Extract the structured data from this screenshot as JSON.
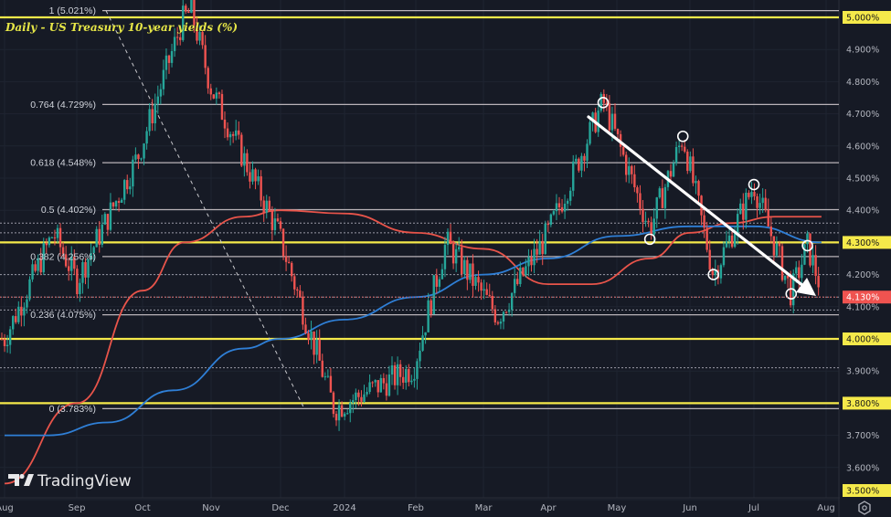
{
  "chart_title": "Daily - US Treasury 10-year yields (%)",
  "watermark": "TradingView",
  "current_price_label": "4.130%",
  "colors": {
    "background": "#161a25",
    "bullish": "#26a69a",
    "bearish": "#ef5350",
    "ma_red": "#e8544a",
    "ma_blue": "#2f7fd6",
    "horizontal_level": "#f5e94a",
    "fib_line": "#b9b3b8",
    "current_price_badge": "#ef5350"
  },
  "price_axis": {
    "ticks": [
      "5.000%",
      "4.900%",
      "4.800%",
      "4.700%",
      "4.600%",
      "4.500%",
      "4.400%",
      "4.300%",
      "4.200%",
      "4.100%",
      "4.000%",
      "3.900%",
      "3.800%",
      "3.700%",
      "3.600%",
      "3.500%"
    ],
    "highlighted": [
      "5.000%",
      "4.300%",
      "4.000%",
      "3.800%",
      "3.500%"
    ],
    "settings_icon": "gear-hex-icon"
  },
  "time_axis": {
    "ticks": [
      "Aug",
      "Sep",
      "Oct",
      "Nov",
      "Dec",
      "2024",
      "Feb",
      "Mar",
      "Apr",
      "May",
      "Jun",
      "Jul",
      "Aug"
    ]
  },
  "fib_levels": [
    {
      "label": "1 (5.021%)",
      "value": 5.021
    },
    {
      "label": "0.764 (4.729%)",
      "value": 4.729
    },
    {
      "label": "0.618 (4.548%)",
      "value": 4.548
    },
    {
      "label": "0.5 (4.402%)",
      "value": 4.402
    },
    {
      "label": "0.382 (4.256%)",
      "value": 4.256
    },
    {
      "label": "0.236 (4.075%)",
      "value": 4.075
    },
    {
      "label": "0 (3.783%)",
      "value": 3.783
    }
  ],
  "chart_data": {
    "type": "candlestick",
    "title": "Daily - US Treasury 10-year yields (%)",
    "xlabel": "",
    "ylabel": "Yield (%)",
    "ylim": [
      3.5,
      5.05
    ],
    "x_range": [
      "2023-08",
      "2024-08"
    ],
    "grid": true,
    "horizontal_levels": [
      5.0,
      4.3,
      4.0,
      3.8
    ],
    "dotted_levels": [
      4.36,
      4.33,
      4.2,
      4.13,
      4.09,
      3.91
    ],
    "fibonacci_retracement": {
      "from": 5.021,
      "to": 3.783,
      "levels": [
        1,
        0.764,
        0.618,
        0.5,
        0.382,
        0.236,
        0
      ]
    },
    "moving_averages": [
      {
        "name": "MA (red, shorter)",
        "color": "#e8544a",
        "points": [
          [
            "2023-08-01",
            3.55
          ],
          [
            "2023-09-01",
            3.8
          ],
          [
            "2023-10-01",
            4.15
          ],
          [
            "2023-10-20",
            4.3
          ],
          [
            "2023-11-15",
            4.38
          ],
          [
            "2023-12-01",
            4.4
          ],
          [
            "2024-01-01",
            4.39
          ],
          [
            "2024-02-01",
            4.33
          ],
          [
            "2024-03-01",
            4.28
          ],
          [
            "2024-04-01",
            4.17
          ],
          [
            "2024-04-20",
            4.17
          ],
          [
            "2024-05-15",
            4.25
          ],
          [
            "2024-06-01",
            4.33
          ],
          [
            "2024-06-20",
            4.36
          ],
          [
            "2024-07-10",
            4.38
          ],
          [
            "2024-07-30",
            4.38
          ]
        ]
      },
      {
        "name": "MA (blue, longer)",
        "color": "#2f7fd6",
        "points": [
          [
            "2023-08-01",
            3.7
          ],
          [
            "2023-08-20",
            3.7
          ],
          [
            "2023-09-15",
            3.74
          ],
          [
            "2023-10-15",
            3.84
          ],
          [
            "2023-11-15",
            3.97
          ],
          [
            "2023-12-01",
            4.0
          ],
          [
            "2024-01-01",
            4.06
          ],
          [
            "2024-02-01",
            4.13
          ],
          [
            "2024-03-01",
            4.2
          ],
          [
            "2024-04-01",
            4.25
          ],
          [
            "2024-05-01",
            4.32
          ],
          [
            "2024-06-01",
            4.35
          ],
          [
            "2024-07-01",
            4.35
          ],
          [
            "2024-07-30",
            4.3
          ]
        ]
      }
    ],
    "annotations": [
      {
        "type": "trend_arrow",
        "from": [
          "2024-04-25",
          4.71
        ],
        "to": [
          "2024-07-30",
          4.14
        ],
        "color": "#ffffff"
      },
      {
        "type": "circle",
        "at": [
          "2024-04-25",
          4.735
        ],
        "note": "swing high"
      },
      {
        "type": "circle",
        "at": [
          "2024-05-15",
          4.31
        ],
        "note": "swing low"
      },
      {
        "type": "circle",
        "at": [
          "2024-05-29",
          4.63
        ],
        "note": "swing high"
      },
      {
        "type": "circle",
        "at": [
          "2024-06-12",
          4.2
        ],
        "note": "swing low"
      },
      {
        "type": "circle",
        "at": [
          "2024-07-01",
          4.48
        ],
        "note": "swing high"
      },
      {
        "type": "circle",
        "at": [
          "2024-07-17",
          4.14
        ],
        "note": "swing low"
      },
      {
        "type": "circle",
        "at": [
          "2024-07-24",
          4.29
        ],
        "note": "swing high"
      },
      {
        "type": "dashed_line",
        "from": [
          "2023-09-10",
          5.021
        ],
        "to": [
          "2023-12-27",
          3.783
        ],
        "note": "fib anchor"
      }
    ],
    "key_points": [
      {
        "date": "2023-08-01",
        "close": 4.0
      },
      {
        "date": "2023-08-22",
        "close": 4.33
      },
      {
        "date": "2023-09-01",
        "close": 4.18
      },
      {
        "date": "2023-09-29",
        "close": 4.57
      },
      {
        "date": "2023-10-19",
        "close": 4.99
      },
      {
        "date": "2023-10-23",
        "high": 5.021
      },
      {
        "date": "2023-11-01",
        "close": 4.78
      },
      {
        "date": "2023-11-30",
        "close": 4.33
      },
      {
        "date": "2023-12-27",
        "low": 3.783
      },
      {
        "date": "2024-01-31",
        "close": 3.91
      },
      {
        "date": "2024-02-14",
        "close": 4.3
      },
      {
        "date": "2024-03-08",
        "close": 4.07
      },
      {
        "date": "2024-04-01",
        "close": 4.33
      },
      {
        "date": "2024-04-25",
        "high": 4.739
      },
      {
        "date": "2024-05-15",
        "close": 4.34
      },
      {
        "date": "2024-05-29",
        "high": 4.63
      },
      {
        "date": "2024-06-12",
        "low": 4.2
      },
      {
        "date": "2024-07-01",
        "high": 4.48
      },
      {
        "date": "2024-07-17",
        "low": 4.14
      },
      {
        "date": "2024-07-24",
        "high": 4.29
      },
      {
        "date": "2024-07-31",
        "close": 4.13
      }
    ],
    "last_value": 4.13
  }
}
